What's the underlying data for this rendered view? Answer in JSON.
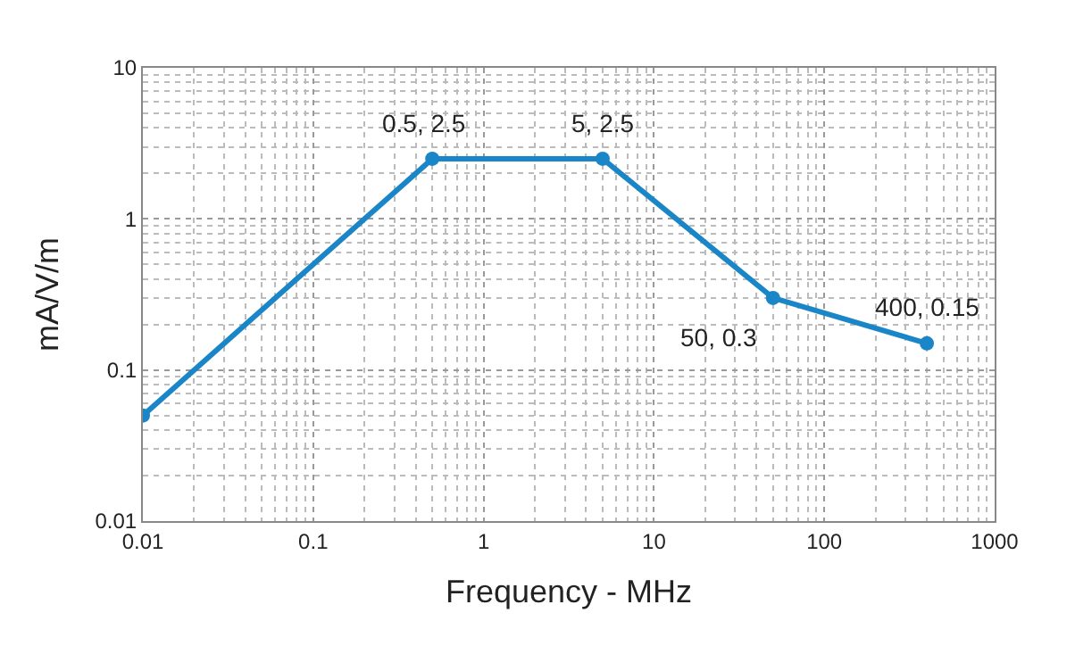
{
  "chart_data": {
    "type": "line",
    "xlabel": "Frequency - MHz",
    "ylabel": "mA/V/m",
    "log": "xy",
    "grid": true,
    "marker": "circle",
    "line_style": "solid",
    "x": [
      0.01,
      0.5,
      5,
      50,
      400
    ],
    "series": [
      {
        "color": "#1a86c8",
        "values": [
          0.05,
          2.5,
          2.5,
          0.3,
          0.15
        ]
      }
    ],
    "xlim": [
      0.01,
      1000
    ],
    "xticks": [
      0.01,
      0.1,
      1,
      10,
      100,
      1000
    ],
    "ylim": [
      0.01,
      10
    ],
    "yticks": [
      0.01,
      0.1,
      1,
      10
    ],
    "annotations": [
      {
        "text": "0.5, 2.5",
        "x": 0.5,
        "y": 2.5
      },
      {
        "text": "5, 2.5",
        "x": 5,
        "y": 2.5
      },
      {
        "text": "50, 0.3",
        "x": 50,
        "y": 0.3
      },
      {
        "text": "400, 0.15",
        "x": 400,
        "y": 0.15
      }
    ]
  }
}
